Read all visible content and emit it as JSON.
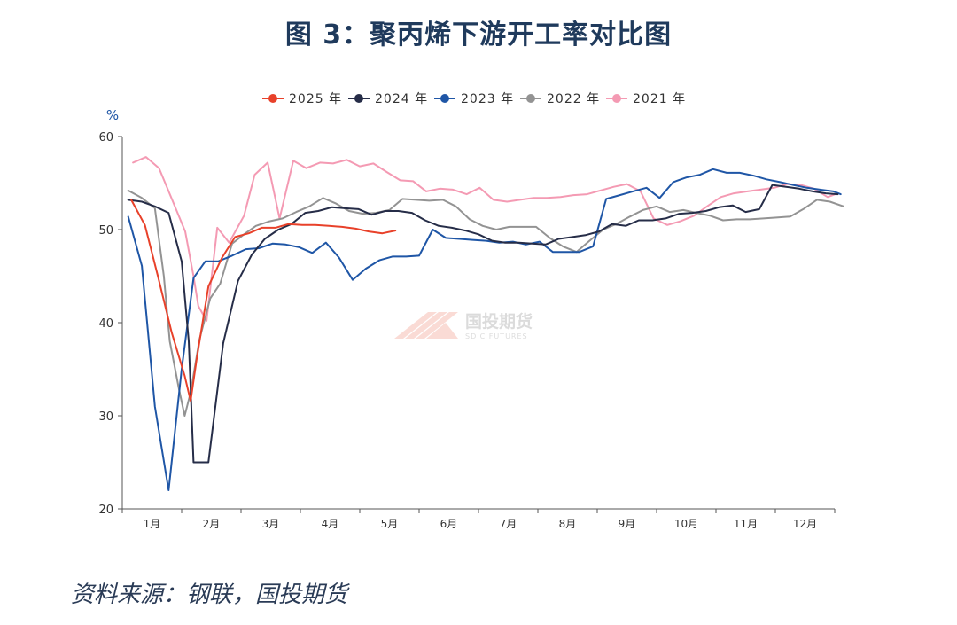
{
  "figure_title": "图 3：聚丙烯下游开工率对比图",
  "source": "资料来源：钢联，国投期货",
  "watermark": {
    "name": "国投期货",
    "sub": "SDIC FUTURES"
  },
  "chart_data": {
    "type": "line",
    "title": "图 3：聚丙烯下游开工率对比图",
    "ylabel": "%",
    "xlabel": "",
    "ylim": [
      20,
      60
    ],
    "y_ticks": [
      20,
      30,
      40,
      50,
      60
    ],
    "xlim": [
      0,
      12
    ],
    "x_ticks": [
      {
        "label": "1月",
        "x": 0.5
      },
      {
        "label": "2月",
        "x": 1.5
      },
      {
        "label": "3月",
        "x": 2.5
      },
      {
        "label": "4月",
        "x": 3.5
      },
      {
        "label": "5月",
        "x": 4.5
      },
      {
        "label": "6月",
        "x": 5.5
      },
      {
        "label": "7月",
        "x": 6.5
      },
      {
        "label": "8月",
        "x": 7.5
      },
      {
        "label": "9月",
        "x": 8.5
      },
      {
        "label": "10月",
        "x": 9.5
      },
      {
        "label": "11月",
        "x": 10.5
      },
      {
        "label": "12月",
        "x": 11.5
      }
    ],
    "legend_position": "top-center",
    "grid": false,
    "series": [
      {
        "name": "2021 年",
        "color": "#f49ab3",
        "points": [
          [
            0.18,
            57.2
          ],
          [
            0.4,
            57.8
          ],
          [
            0.62,
            56.6
          ],
          [
            0.84,
            53.2
          ],
          [
            1.06,
            49.8
          ],
          [
            1.2,
            45
          ],
          [
            1.28,
            41.8
          ],
          [
            1.42,
            40.2
          ],
          [
            1.6,
            50.2
          ],
          [
            1.8,
            48.6
          ],
          [
            2.05,
            51.5
          ],
          [
            2.23,
            55.9
          ],
          [
            2.45,
            57.2
          ],
          [
            2.65,
            51.2
          ],
          [
            2.88,
            57.4
          ],
          [
            3.1,
            56.6
          ],
          [
            3.33,
            57.2
          ],
          [
            3.55,
            57.1
          ],
          [
            3.78,
            57.5
          ],
          [
            4.0,
            56.8
          ],
          [
            4.23,
            57.1
          ],
          [
            4.45,
            56.2
          ],
          [
            4.68,
            55.3
          ],
          [
            4.9,
            55.2
          ],
          [
            5.12,
            54.1
          ],
          [
            5.35,
            54.4
          ],
          [
            5.57,
            54.3
          ],
          [
            5.8,
            53.8
          ],
          [
            6.02,
            54.5
          ],
          [
            6.25,
            53.2
          ],
          [
            6.48,
            53.0
          ],
          [
            6.7,
            53.2
          ],
          [
            6.93,
            53.4
          ],
          [
            7.15,
            53.4
          ],
          [
            7.38,
            53.5
          ],
          [
            7.6,
            53.7
          ],
          [
            7.83,
            53.8
          ],
          [
            8.05,
            54.2
          ],
          [
            8.28,
            54.6
          ],
          [
            8.5,
            54.9
          ],
          [
            8.73,
            54.1
          ],
          [
            8.95,
            51.2
          ],
          [
            9.18,
            50.5
          ],
          [
            9.4,
            50.9
          ],
          [
            9.63,
            51.5
          ],
          [
            9.85,
            52.5
          ],
          [
            10.08,
            53.5
          ],
          [
            10.3,
            53.9
          ],
          [
            10.53,
            54.1
          ],
          [
            10.75,
            54.3
          ],
          [
            10.98,
            54.5
          ],
          [
            11.2,
            54.9
          ],
          [
            11.43,
            54.8
          ],
          [
            11.65,
            54.4
          ],
          [
            11.88,
            53.5
          ],
          [
            12.05,
            53.9
          ]
        ]
      },
      {
        "name": "2022 年",
        "color": "#939393",
        "points": [
          [
            0.1,
            54.2
          ],
          [
            0.33,
            53.4
          ],
          [
            0.55,
            52.3
          ],
          [
            0.7,
            45
          ],
          [
            0.8,
            38
          ],
          [
            0.95,
            33
          ],
          [
            1.05,
            30.0
          ],
          [
            1.15,
            32.5
          ],
          [
            1.3,
            38.2
          ],
          [
            1.48,
            42.6
          ],
          [
            1.65,
            44.2
          ],
          [
            1.85,
            48.5
          ],
          [
            2.05,
            49.5
          ],
          [
            2.25,
            50.4
          ],
          [
            2.48,
            50.9
          ],
          [
            2.7,
            51.2
          ],
          [
            2.93,
            51.9
          ],
          [
            3.15,
            52.5
          ],
          [
            3.38,
            53.4
          ],
          [
            3.6,
            52.8
          ],
          [
            3.82,
            52.0
          ],
          [
            4.05,
            51.7
          ],
          [
            4.27,
            51.8
          ],
          [
            4.5,
            52.1
          ],
          [
            4.72,
            53.3
          ],
          [
            4.95,
            53.2
          ],
          [
            5.17,
            53.1
          ],
          [
            5.4,
            53.2
          ],
          [
            5.62,
            52.5
          ],
          [
            5.85,
            51.1
          ],
          [
            6.07,
            50.4
          ],
          [
            6.3,
            50.0
          ],
          [
            6.52,
            50.3
          ],
          [
            6.75,
            50.3
          ],
          [
            6.97,
            50.3
          ],
          [
            7.2,
            49.1
          ],
          [
            7.42,
            48.2
          ],
          [
            7.65,
            47.6
          ],
          [
            7.87,
            48.8
          ],
          [
            8.1,
            50.0
          ],
          [
            8.32,
            50.6
          ],
          [
            8.55,
            51.4
          ],
          [
            8.77,
            52.1
          ],
          [
            9.0,
            52.5
          ],
          [
            9.22,
            51.9
          ],
          [
            9.45,
            52.1
          ],
          [
            9.67,
            51.8
          ],
          [
            9.9,
            51.5
          ],
          [
            10.12,
            51.0
          ],
          [
            10.35,
            51.1
          ],
          [
            10.57,
            51.1
          ],
          [
            10.8,
            51.2
          ],
          [
            11.02,
            51.3
          ],
          [
            11.25,
            51.4
          ],
          [
            11.47,
            52.2
          ],
          [
            11.7,
            53.2
          ],
          [
            11.92,
            53.0
          ],
          [
            12.15,
            52.5
          ]
        ]
      },
      {
        "name": "2023 年",
        "color": "#1f56a6",
        "points": [
          [
            0.1,
            51.4
          ],
          [
            0.33,
            46.1
          ],
          [
            0.55,
            31
          ],
          [
            0.78,
            22
          ],
          [
            1.0,
            35
          ],
          [
            1.2,
            44.8
          ],
          [
            1.4,
            46.6
          ],
          [
            1.62,
            46.6
          ],
          [
            1.85,
            47.2
          ],
          [
            2.08,
            47.9
          ],
          [
            2.3,
            48.0
          ],
          [
            2.53,
            48.5
          ],
          [
            2.75,
            48.4
          ],
          [
            2.98,
            48.1
          ],
          [
            3.2,
            47.5
          ],
          [
            3.43,
            48.6
          ],
          [
            3.65,
            47.0
          ],
          [
            3.88,
            44.6
          ],
          [
            4.1,
            45.8
          ],
          [
            4.33,
            46.7
          ],
          [
            4.55,
            47.1
          ],
          [
            4.78,
            47.1
          ],
          [
            5.0,
            47.2
          ],
          [
            5.23,
            50.0
          ],
          [
            5.45,
            49.1
          ],
          [
            5.68,
            49.0
          ],
          [
            5.9,
            48.9
          ],
          [
            6.13,
            48.8
          ],
          [
            6.35,
            48.6
          ],
          [
            6.58,
            48.7
          ],
          [
            6.8,
            48.4
          ],
          [
            7.03,
            48.7
          ],
          [
            7.25,
            47.6
          ],
          [
            7.48,
            47.6
          ],
          [
            7.7,
            47.6
          ],
          [
            7.93,
            48.2
          ],
          [
            8.15,
            53.3
          ],
          [
            8.38,
            53.7
          ],
          [
            8.6,
            54.1
          ],
          [
            8.83,
            54.5
          ],
          [
            9.05,
            53.4
          ],
          [
            9.28,
            55.1
          ],
          [
            9.5,
            55.6
          ],
          [
            9.73,
            55.9
          ],
          [
            9.95,
            56.5
          ],
          [
            10.18,
            56.1
          ],
          [
            10.4,
            56.1
          ],
          [
            10.63,
            55.8
          ],
          [
            10.85,
            55.4
          ],
          [
            11.08,
            55.1
          ],
          [
            11.3,
            54.8
          ],
          [
            11.53,
            54.5
          ],
          [
            11.75,
            54.3
          ],
          [
            11.98,
            54.1
          ],
          [
            12.1,
            53.8
          ]
        ]
      },
      {
        "name": "2024 年",
        "color": "#262d48",
        "points": [
          [
            0.1,
            53.2
          ],
          [
            0.33,
            53.0
          ],
          [
            0.55,
            52.5
          ],
          [
            0.78,
            51.8
          ],
          [
            1.0,
            46.6
          ],
          [
            1.12,
            38
          ],
          [
            1.2,
            25.0
          ],
          [
            1.45,
            25.0
          ],
          [
            1.7,
            37.8
          ],
          [
            1.95,
            44.5
          ],
          [
            2.18,
            47.3
          ],
          [
            2.4,
            49.0
          ],
          [
            2.63,
            50.0
          ],
          [
            2.85,
            50.6
          ],
          [
            3.08,
            51.8
          ],
          [
            3.3,
            52.0
          ],
          [
            3.53,
            52.4
          ],
          [
            3.75,
            52.3
          ],
          [
            3.98,
            52.2
          ],
          [
            4.2,
            51.6
          ],
          [
            4.43,
            52.0
          ],
          [
            4.65,
            52.0
          ],
          [
            4.88,
            51.8
          ],
          [
            5.1,
            51.0
          ],
          [
            5.33,
            50.4
          ],
          [
            5.55,
            50.2
          ],
          [
            5.78,
            49.9
          ],
          [
            6.0,
            49.5
          ],
          [
            6.23,
            48.8
          ],
          [
            6.45,
            48.6
          ],
          [
            6.68,
            48.6
          ],
          [
            6.9,
            48.5
          ],
          [
            7.13,
            48.4
          ],
          [
            7.35,
            49.0
          ],
          [
            7.58,
            49.2
          ],
          [
            7.8,
            49.4
          ],
          [
            8.03,
            49.8
          ],
          [
            8.25,
            50.6
          ],
          [
            8.48,
            50.4
          ],
          [
            8.7,
            51.0
          ],
          [
            8.93,
            51.0
          ],
          [
            9.15,
            51.2
          ],
          [
            9.38,
            51.7
          ],
          [
            9.6,
            51.8
          ],
          [
            9.83,
            52.0
          ],
          [
            10.05,
            52.4
          ],
          [
            10.28,
            52.6
          ],
          [
            10.5,
            51.9
          ],
          [
            10.73,
            52.2
          ],
          [
            10.95,
            54.8
          ],
          [
            11.18,
            54.6
          ],
          [
            11.4,
            54.4
          ],
          [
            11.63,
            54.1
          ],
          [
            11.85,
            53.9
          ],
          [
            12.05,
            53.8
          ]
        ]
      },
      {
        "name": "2025 年",
        "color": "#e8412a",
        "points": [
          [
            0.15,
            53.2
          ],
          [
            0.38,
            50.5
          ],
          [
            0.6,
            45
          ],
          [
            0.83,
            39
          ],
          [
            1.05,
            34.3
          ],
          [
            1.15,
            31.6
          ],
          [
            1.25,
            36
          ],
          [
            1.45,
            43.9
          ],
          [
            1.68,
            47.0
          ],
          [
            1.9,
            49.2
          ],
          [
            2.13,
            49.6
          ],
          [
            2.35,
            50.2
          ],
          [
            2.58,
            50.2
          ],
          [
            2.8,
            50.6
          ],
          [
            3.03,
            50.5
          ],
          [
            3.25,
            50.5
          ],
          [
            3.48,
            50.4
          ],
          [
            3.7,
            50.3
          ],
          [
            3.93,
            50.1
          ],
          [
            4.15,
            49.8
          ],
          [
            4.38,
            49.6
          ],
          [
            4.6,
            49.9
          ]
        ]
      }
    ]
  }
}
